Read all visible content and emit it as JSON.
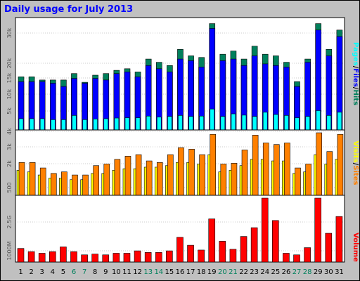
{
  "title": "Daily usage for July 2013",
  "colors": {
    "background": "#C0C0C0",
    "plot_bg": "#ffffff",
    "hits": "#00805C",
    "files": "#0000FF",
    "pages": "#00FFFF",
    "visits": "#FFFF00",
    "sites": "#FF8000",
    "kbytes": "#FF0000",
    "weekend": "#00805C",
    "title": "#0000FF"
  },
  "chart_data": [
    {
      "type": "bar",
      "title": "Daily usage for July 2013",
      "categories": [
        "1",
        "2",
        "3",
        "4",
        "5",
        "6",
        "7",
        "8",
        "9",
        "10",
        "11",
        "12",
        "13",
        "14",
        "15",
        "16",
        "17",
        "18",
        "19",
        "20",
        "21",
        "22",
        "23",
        "24",
        "25",
        "26",
        "27",
        "28",
        "29",
        "30",
        "31"
      ],
      "weekend_days": [
        "6",
        "7",
        "13",
        "14",
        "20",
        "21",
        "27",
        "28"
      ],
      "y_ticks": [
        "5k",
        "10k",
        "15k",
        "20k",
        "30k"
      ],
      "ylim": [
        0,
        34000
      ],
      "side_label": [
        "Pages",
        "/",
        "Files",
        "/",
        "Hits"
      ],
      "series": [
        {
          "name": "Hits",
          "values": [
            16500,
            16500,
            15500,
            15500,
            15500,
            17500,
            14800,
            17000,
            17500,
            18500,
            19000,
            18000,
            22000,
            21000,
            20000,
            25000,
            23000,
            22500,
            33000,
            23500,
            24500,
            22000,
            26000,
            23500,
            23000,
            21000,
            15000,
            22000,
            33000,
            25000,
            31000
          ]
        },
        {
          "name": "Files",
          "values": [
            15000,
            15000,
            15000,
            14500,
            13500,
            16000,
            14500,
            16000,
            15500,
            17500,
            18000,
            16500,
            20000,
            19000,
            18000,
            22000,
            21500,
            19500,
            31500,
            21500,
            22000,
            20000,
            23000,
            20500,
            20000,
            19500,
            13500,
            21000,
            31000,
            23000,
            29000
          ]
        },
        {
          "name": "Pages",
          "values": [
            3500,
            3500,
            3500,
            3200,
            3200,
            4500,
            3200,
            3400,
            3500,
            3700,
            3800,
            3800,
            4300,
            4000,
            4200,
            4500,
            4200,
            4300,
            6500,
            4200,
            5000,
            4600,
            4200,
            5500,
            4800,
            4500,
            3800,
            4200,
            6000,
            4500,
            5500
          ]
        }
      ]
    },
    {
      "type": "bar",
      "categories": [
        "1",
        "2",
        "3",
        "4",
        "5",
        "6",
        "7",
        "8",
        "9",
        "10",
        "11",
        "12",
        "13",
        "14",
        "15",
        "16",
        "17",
        "18",
        "19",
        "20",
        "21",
        "22",
        "23",
        "24",
        "25",
        "26",
        "27",
        "28",
        "29",
        "30",
        "31"
      ],
      "y_ticks": [
        "500",
        "2k",
        "3k",
        "4k"
      ],
      "ylim": [
        0,
        4000
      ],
      "side_label": [
        "Visits",
        "/",
        "Sites"
      ],
      "series": [
        {
          "name": "Visits",
          "values": [
            1600,
            1500,
            1300,
            1100,
            1100,
            1000,
            1000,
            1400,
            1400,
            1600,
            1700,
            1700,
            1800,
            1800,
            1900,
            2100,
            2100,
            2000,
            2600,
            1500,
            1600,
            1900,
            2300,
            2300,
            2200,
            2200,
            1400,
            1500,
            2600,
            2000,
            2300
          ]
        },
        {
          "name": "Sites",
          "values": [
            2100,
            2100,
            1750,
            1400,
            1500,
            1300,
            1300,
            1900,
            2000,
            2300,
            2500,
            2600,
            2200,
            2100,
            2600,
            3050,
            2950,
            2600,
            3900,
            2000,
            2050,
            2900,
            3850,
            3350,
            3250,
            3350,
            1750,
            2000,
            4000,
            2800,
            3900
          ]
        }
      ]
    },
    {
      "type": "bar",
      "categories": [
        "1",
        "2",
        "3",
        "4",
        "5",
        "6",
        "7",
        "8",
        "9",
        "10",
        "11",
        "12",
        "13",
        "14",
        "15",
        "16",
        "17",
        "18",
        "19",
        "20",
        "21",
        "22",
        "23",
        "24",
        "25",
        "26",
        "27",
        "28",
        "29",
        "30",
        "31"
      ],
      "y_ticks": [
        "1000M",
        "2.5G"
      ],
      "ylim": [
        0,
        4000
      ],
      "side_label": [
        "Volume"
      ],
      "series": [
        {
          "name": "Volume",
          "values": [
            850,
            650,
            550,
            650,
            950,
            650,
            450,
            500,
            450,
            550,
            550,
            700,
            600,
            600,
            700,
            1550,
            1050,
            750,
            2700,
            1300,
            800,
            1600,
            2150,
            4000,
            2600,
            550,
            450,
            900,
            4000,
            1800,
            2850
          ]
        }
      ]
    }
  ]
}
